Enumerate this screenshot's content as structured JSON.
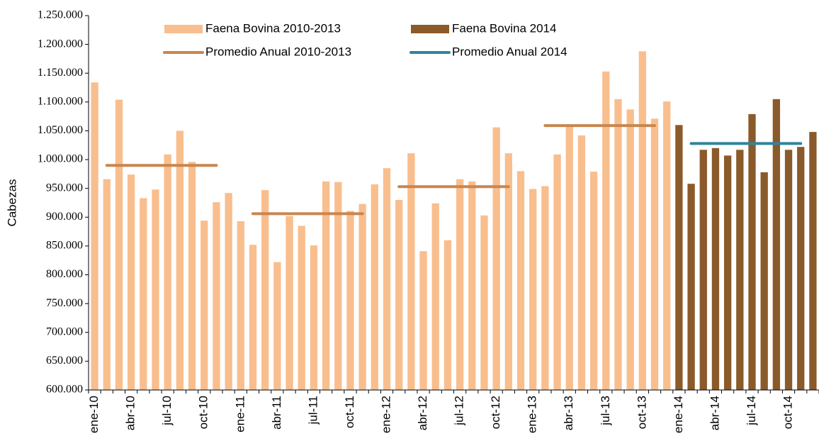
{
  "chart_data": {
    "type": "bar",
    "ylabel": "Cabezas",
    "categories": [
      "ene-10",
      null,
      null,
      "abr-10",
      null,
      null,
      "jul-10",
      null,
      null,
      "oct-10",
      null,
      null,
      "ene-11",
      null,
      null,
      "abr-11",
      null,
      null,
      "jul-11",
      null,
      null,
      "oct-11",
      null,
      null,
      "ene-12",
      null,
      null,
      "abr-12",
      null,
      null,
      "jul-12",
      null,
      null,
      "oct-12",
      null,
      null,
      "ene-13",
      null,
      null,
      "abr-13",
      null,
      null,
      "jul-13",
      null,
      null,
      "oct-13",
      null,
      null,
      "ene-14",
      null,
      null,
      "abr-14",
      null,
      null,
      "jul-14",
      null,
      null,
      "oct-14",
      null,
      null
    ],
    "series": [
      {
        "name": "Faena Bovina 2010-2013",
        "color": "#f9be8e",
        "values": [
          1134000,
          966000,
          1104000,
          974000,
          933000,
          948000,
          1009000,
          1050000,
          996000,
          894000,
          926000,
          942000,
          893000,
          852000,
          947000,
          822000,
          902000,
          885000,
          851000,
          962000,
          961000,
          911000,
          923000,
          957000,
          985000,
          930000,
          1011000,
          841000,
          924000,
          860000,
          966000,
          962000,
          903000,
          1056000,
          1011000,
          980000,
          949000,
          954000,
          1009000,
          1060000,
          1042000,
          979000,
          1153000,
          1105000,
          1087000,
          1188000,
          1071000,
          1101000,
          null,
          null,
          null,
          null,
          null,
          null,
          null,
          null,
          null,
          null,
          null,
          null
        ]
      },
      {
        "name": "Faena Bovina 2014",
        "color": "#8b5a2b",
        "values": [
          null,
          null,
          null,
          null,
          null,
          null,
          null,
          null,
          null,
          null,
          null,
          null,
          null,
          null,
          null,
          null,
          null,
          null,
          null,
          null,
          null,
          null,
          null,
          null,
          null,
          null,
          null,
          null,
          null,
          null,
          null,
          null,
          null,
          null,
          null,
          null,
          null,
          null,
          null,
          null,
          null,
          null,
          null,
          null,
          null,
          null,
          null,
          null,
          1060000,
          958000,
          1017000,
          1020000,
          1007000,
          1017000,
          1079000,
          978000,
          1105000,
          1017000,
          1022000,
          1048000
        ]
      }
    ],
    "lines": [
      {
        "name": "Promedio Anual 2010-2013",
        "color": "#c8864f",
        "values": [
          990000,
          906000,
          953000,
          1059000,
          null
        ]
      },
      {
        "name": "Promedio Anual 2014",
        "color": "#31859c",
        "values": [
          null,
          null,
          null,
          null,
          1028000
        ]
      }
    ],
    "ylim": [
      600000,
      1250000
    ],
    "yticks": [
      {
        "value": 600000,
        "label": "600.000"
      },
      {
        "value": 650000,
        "label": "650.000"
      },
      {
        "value": 700000,
        "label": "700.000"
      },
      {
        "value": 750000,
        "label": "750.000"
      },
      {
        "value": 800000,
        "label": "800.000"
      },
      {
        "value": 850000,
        "label": "850.000"
      },
      {
        "value": 900000,
        "label": "900.000"
      },
      {
        "value": 950000,
        "label": "950.000"
      },
      {
        "value": 1000000,
        "label": "1.000.000"
      },
      {
        "value": 1050000,
        "label": "1.050.000"
      },
      {
        "value": 1100000,
        "label": "1.100.000"
      },
      {
        "value": 1150000,
        "label": "1.150.000"
      },
      {
        "value": 1200000,
        "label": "1.200.000"
      },
      {
        "value": 1250000,
        "label": "1.250.000"
      }
    ],
    "grid": false
  }
}
